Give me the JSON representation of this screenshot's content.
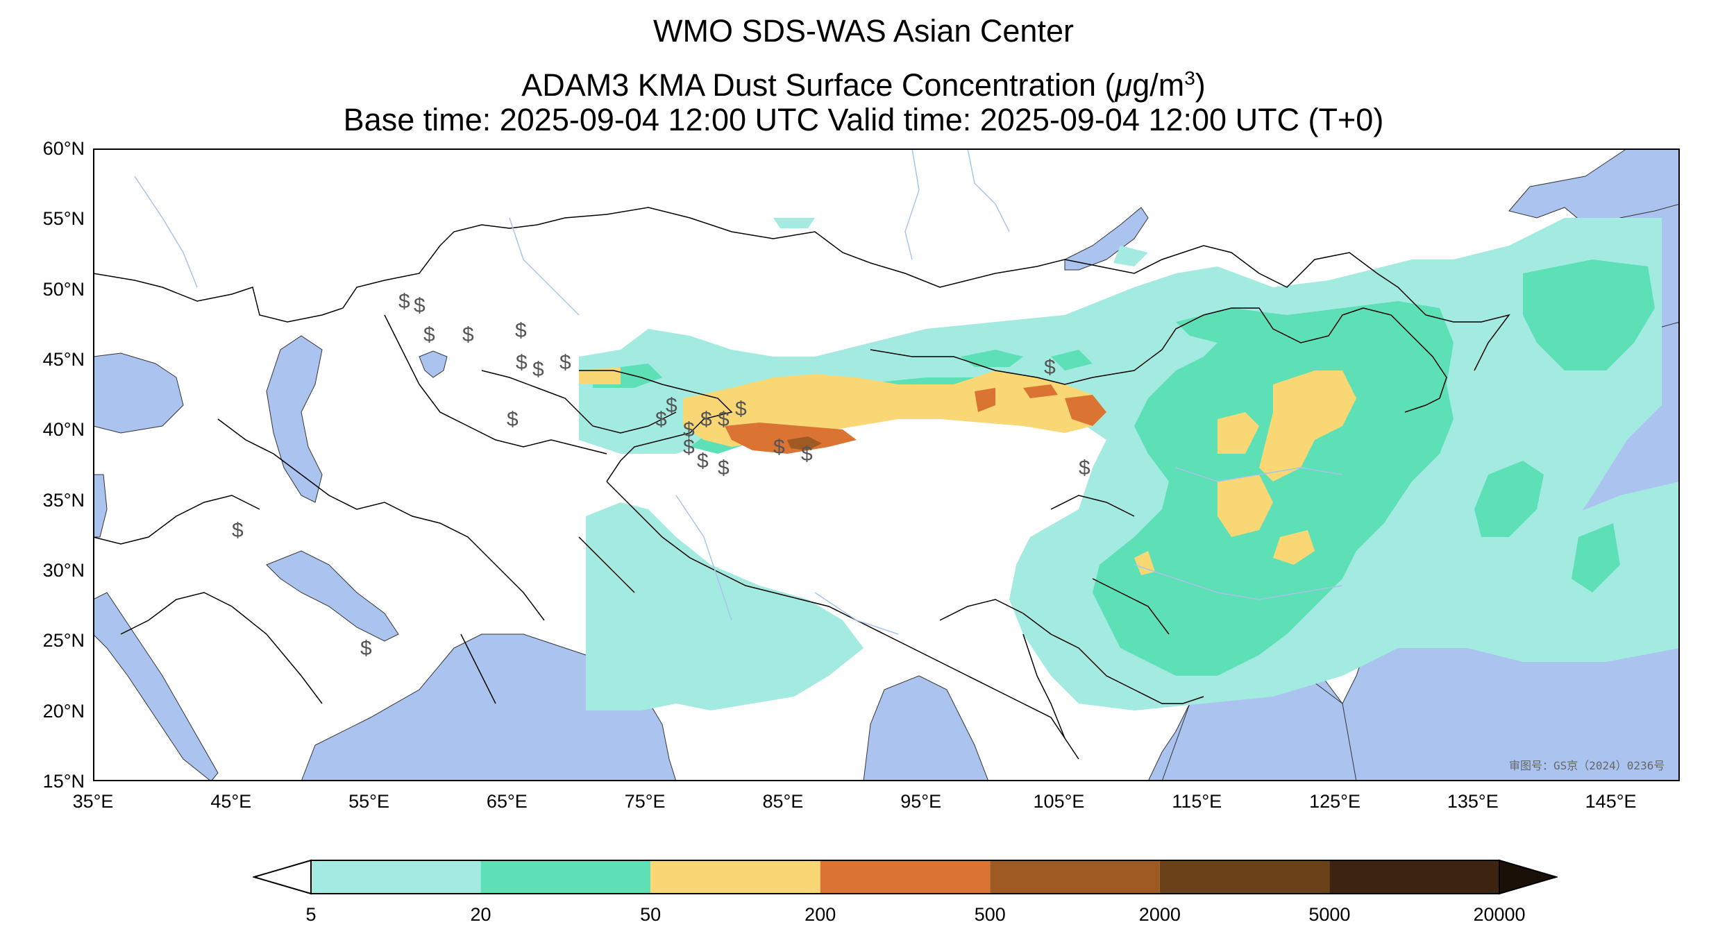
{
  "title": {
    "line1": "WMO SDS-WAS Asian Center",
    "line2_prefix": "ADAM3 KMA Dust Surface Concentration (",
    "line2_mu": "μ",
    "line2_unit": "g/m",
    "line2_sup": "3",
    "line2_suffix": ")",
    "line3": "Base time: 2025-09-04 12:00 UTC Valid time: 2025-09-04 12:00 UTC (T+0)"
  },
  "map": {
    "lat_labels": [
      "60°N",
      "55°N",
      "50°N",
      "45°N",
      "40°N",
      "35°N",
      "30°N",
      "25°N",
      "20°N",
      "15°N"
    ],
    "lon_labels": [
      "35°E",
      "45°E",
      "55°E",
      "65°E",
      "75°E",
      "85°E",
      "95°E",
      "105°E",
      "115°E",
      "125°E",
      "135°E",
      "145°E"
    ],
    "extent": {
      "lon_min": 35,
      "lon_max": 150,
      "lat_min": 15,
      "lat_max": 60
    },
    "credit": "审图号：GS京（2024）0236号",
    "colors": {
      "ocean": "#aac4ef",
      "land": "#ffffff",
      "border": "#000000",
      "river": "#a8c4e8"
    },
    "station_symbol": "$"
  },
  "colorbar": {
    "labels": [
      "5",
      "20",
      "50",
      "200",
      "500",
      "2000",
      "5000",
      "20000"
    ],
    "colors": [
      "#a3ebe0",
      "#5de0b6",
      "#f9d774",
      "#db7333",
      "#9e5a22",
      "#6b4119",
      "#3d2411"
    ],
    "extend_min_color": "#ffffff",
    "extend_max_color": "#1a1008"
  }
}
